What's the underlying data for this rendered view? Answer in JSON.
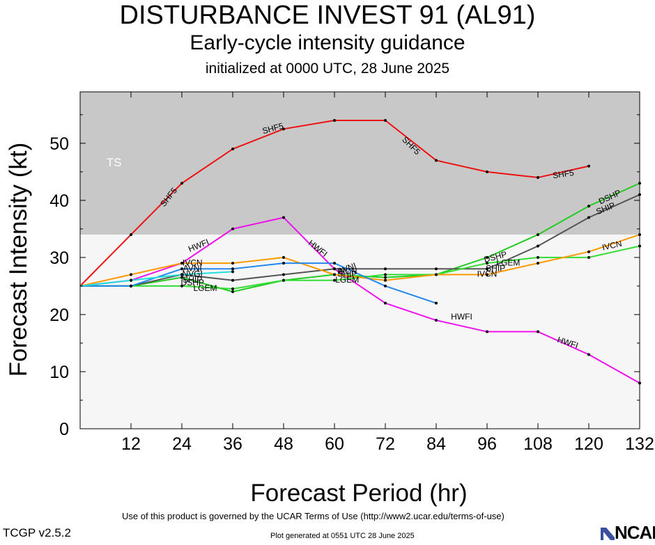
{
  "header": {
    "title": "DISTURBANCE INVEST 91 (AL91)",
    "subtitle": "Early-cycle intensity guidance",
    "init": "initialized at 0000 UTC, 28 June 2025"
  },
  "footer": {
    "terms": "Use of this product is governed by the UCAR Terms of Use (http://www2.ucar.edu/terms-of-use)",
    "generated": "Plot generated at 0551 UTC   28 June 2025",
    "version": "TCGP v2.5.2",
    "logo": "NCAR"
  },
  "chart_data": {
    "type": "line",
    "xlabel": "Forecast Period (hr)",
    "ylabel": "Forecast Intensity (kt)",
    "xlim": [
      0,
      132
    ],
    "ylim": [
      0,
      59
    ],
    "xticks": [
      12,
      24,
      36,
      48,
      60,
      72,
      84,
      96,
      108,
      120,
      132
    ],
    "yticks": [
      0,
      10,
      20,
      30,
      40,
      50
    ],
    "regions": [
      {
        "label": "TS",
        "from": 34,
        "to": 59,
        "color": "#c8c8c8"
      },
      {
        "label": "",
        "from": 0,
        "to": 34,
        "color": "#f6f6f6"
      }
    ],
    "series": [
      {
        "name": "SHF5",
        "color": "#ee1111",
        "x": [
          0,
          12,
          24,
          36,
          48,
          60,
          72,
          84,
          96,
          108,
          120
        ],
        "y": [
          25,
          34,
          43,
          49,
          52.5,
          54,
          54,
          47,
          45,
          44,
          46
        ]
      },
      {
        "name": "HWFI",
        "color": "#ee11ee",
        "x": [
          0,
          12,
          24,
          36,
          48,
          60,
          72,
          84,
          96,
          108,
          120,
          132
        ],
        "y": [
          25,
          26,
          29,
          35,
          37,
          28,
          22,
          19,
          17,
          17,
          13,
          8
        ]
      },
      {
        "name": "DSHP",
        "color": "#22cc22",
        "x": [
          0,
          12,
          24,
          36,
          48,
          60,
          72,
          84,
          96,
          108,
          120,
          132
        ],
        "y": [
          25,
          25,
          26.5,
          24,
          26,
          27,
          26.5,
          27,
          30,
          34,
          39,
          43
        ]
      },
      {
        "name": "SHIP",
        "color": "#555555",
        "x": [
          0,
          12,
          24,
          36,
          48,
          60,
          72,
          84,
          96,
          108,
          120,
          132
        ],
        "y": [
          25,
          25,
          27,
          26,
          27,
          28,
          28,
          28,
          28,
          32,
          37,
          41
        ]
      },
      {
        "name": "LGEM",
        "color": "#33dd33",
        "x": [
          0,
          12,
          24,
          36,
          48,
          60,
          72,
          84,
          96,
          108,
          120,
          132
        ],
        "y": [
          25,
          25,
          25,
          24.5,
          26,
          26,
          27,
          27,
          29,
          30,
          30,
          32
        ]
      },
      {
        "name": "IVCN",
        "color": "#ff9900",
        "x": [
          0,
          12,
          24,
          36,
          48,
          60,
          72,
          84,
          96,
          108,
          120,
          132
        ],
        "y": [
          25,
          27,
          29,
          29,
          30,
          27,
          26,
          27,
          27,
          29,
          31,
          34
        ]
      },
      {
        "name": "AVNI",
        "color": "#2288ee",
        "x": [
          0,
          12,
          24,
          36,
          48,
          60,
          72,
          84
        ],
        "y": [
          25,
          25,
          28,
          28,
          29,
          29,
          25,
          22
        ]
      },
      {
        "name": "NVGI",
        "color": "#22dddd",
        "x": [
          0,
          12,
          24,
          36
        ],
        "y": [
          25,
          26,
          27,
          27.5
        ]
      }
    ],
    "annotations": [
      {
        "text": "TS",
        "x": 8,
        "y": 46.5
      },
      {
        "text": "SHF5",
        "x": 21,
        "y": 40.5,
        "series": "SHF5",
        "angle": -52
      },
      {
        "text": "SHF5",
        "x": 45.5,
        "y": 52.5,
        "series": "SHF5",
        "angle": -15
      },
      {
        "text": "SHF5",
        "x": 78,
        "y": 49.5,
        "series": "SHF5",
        "angle": 45
      },
      {
        "text": "SHF5",
        "x": 114,
        "y": 44.5,
        "series": "SHF5",
        "angle": -8
      },
      {
        "text": "HWFI",
        "x": 28,
        "y": 32,
        "series": "HWFI",
        "angle": -22
      },
      {
        "text": "HWFI",
        "x": 56,
        "y": 31.5,
        "series": "HWFI",
        "angle": 38
      },
      {
        "text": "HWFI",
        "x": 90,
        "y": 19.5,
        "series": "HWFI",
        "angle": 0
      },
      {
        "text": "HWFI",
        "x": 115,
        "y": 15,
        "series": "HWFI",
        "angle": 18
      },
      {
        "text": "IVCN",
        "x": 26.5,
        "y": 29,
        "series": "IVCN",
        "angle": 0
      },
      {
        "text": "AVNI",
        "x": 26.5,
        "y": 28,
        "series": "AVNI",
        "angle": 0
      },
      {
        "text": "NVGI",
        "x": 26.5,
        "y": 27,
        "series": "NVGI",
        "angle": 0
      },
      {
        "text": "SHIP",
        "x": 26.5,
        "y": 26,
        "series": "SHIP",
        "angle": 0
      },
      {
        "text": "DSHP",
        "x": 26.5,
        "y": 25.5,
        "series": "DSHP",
        "angle": 0
      },
      {
        "text": "LGEM",
        "x": 29.5,
        "y": 24.5,
        "series": "LGEM",
        "angle": 0
      },
      {
        "text": "AVNI",
        "x": 63,
        "y": 28,
        "series": "AVNI",
        "angle": -20
      },
      {
        "text": "IVCN",
        "x": 63,
        "y": 27.5,
        "series": "IVCN",
        "angle": 0
      },
      {
        "text": "SHIP",
        "x": 63,
        "y": 27,
        "series": "SHIP",
        "angle": 0
      },
      {
        "text": "LGEM",
        "x": 63,
        "y": 26,
        "series": "LGEM",
        "angle": 0
      },
      {
        "text": "DSHP",
        "x": 98,
        "y": 30,
        "series": "DSHP",
        "angle": -15
      },
      {
        "text": "LGEM",
        "x": 101,
        "y": 29,
        "series": "LGEM",
        "angle": 0
      },
      {
        "text": "SHIP",
        "x": 98,
        "y": 28,
        "series": "SHIP",
        "angle": 0
      },
      {
        "text": "IVCN",
        "x": 96,
        "y": 27,
        "series": "IVCN",
        "angle": 0
      },
      {
        "text": "DSHP",
        "x": 125,
        "y": 40.5,
        "series": "DSHP",
        "angle": -25
      },
      {
        "text": "SHIP",
        "x": 124,
        "y": 38.5,
        "series": "SHIP",
        "angle": -22
      },
      {
        "text": "IVCN",
        "x": 125.5,
        "y": 32,
        "series": "IVCN",
        "angle": -12
      }
    ]
  }
}
